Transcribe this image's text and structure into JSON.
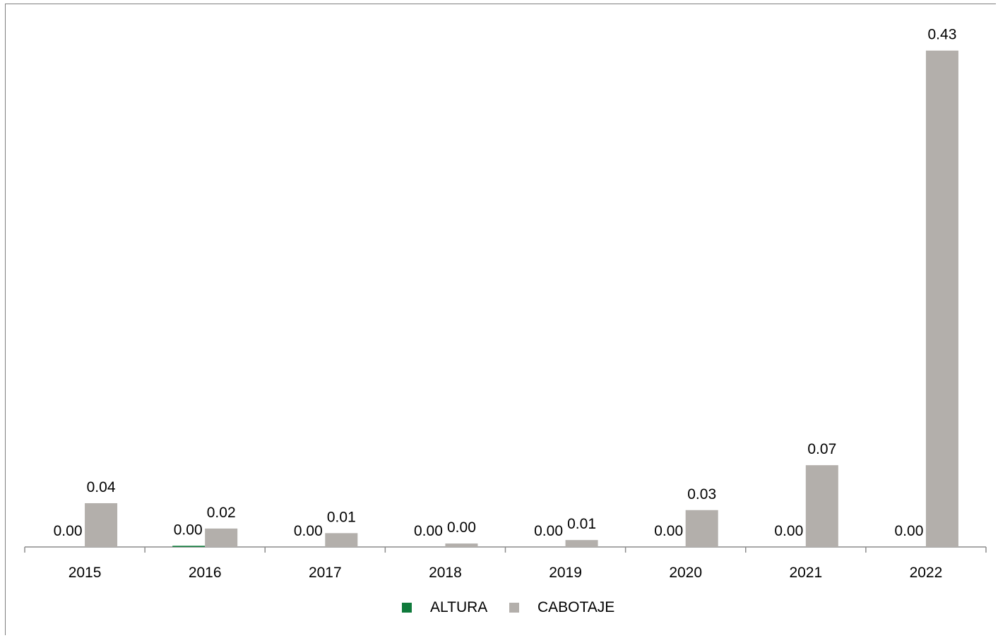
{
  "chart_data": {
    "type": "bar",
    "title": "",
    "xlabel": "",
    "ylabel": "",
    "ylim": [
      0,
      0.44
    ],
    "grid": false,
    "legend_placement": "bottom",
    "categories": [
      "2015",
      "2016",
      "2017",
      "2018",
      "2019",
      "2020",
      "2021",
      "2022"
    ],
    "series": [
      {
        "name": "ALTURA",
        "color": "#0f7a3b",
        "values": [
          0.0,
          0.001,
          0.0,
          0.0,
          0.0,
          0.0,
          0.0,
          0.0
        ],
        "labels": [
          "0.00",
          "0.00",
          "0.00",
          "0.00",
          "0.00",
          "0.00",
          "0.00",
          "0.00"
        ]
      },
      {
        "name": "CABOTAJE",
        "color": "#b3afab",
        "values": [
          0.038,
          0.016,
          0.012,
          0.003,
          0.006,
          0.032,
          0.071,
          0.431
        ],
        "labels": [
          "0.04",
          "0.02",
          "0.01",
          "0.00",
          "0.01",
          "0.03",
          "0.07",
          "0.43"
        ]
      }
    ]
  }
}
